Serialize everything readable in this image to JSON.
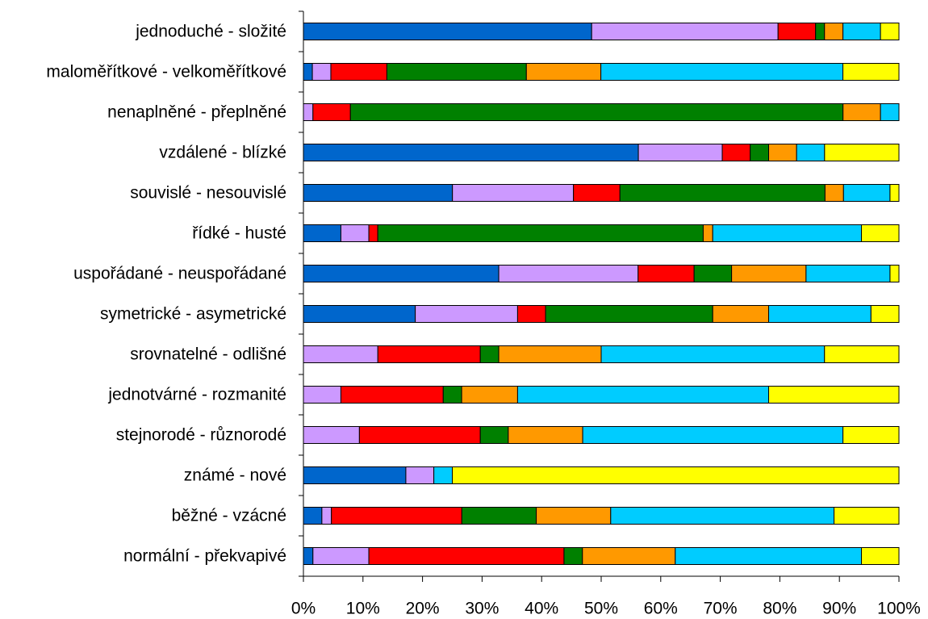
{
  "chart_data": {
    "type": "bar",
    "orientation": "horizontal",
    "stacked": true,
    "percent": true,
    "categories": [
      "jednoduché - složité",
      "maloměřítkové - velkoměřítkové",
      "nenaplněné - přeplněné",
      "vzdálené - blízké",
      "souvislé - nesouvislé",
      "řídké - husté",
      "uspořádané - neuspořádané",
      "symetrické - asymetrické",
      "srovnatelné - odlišné",
      "jednotvárné - rozmanité",
      "stejnorodé - různorodé",
      "známé - nové",
      "běžné - vzácné",
      "normální - překvapivé"
    ],
    "series": [
      {
        "color": "#0066CC",
        "values": [
          48.4,
          1.5,
          0,
          56.3,
          25.0,
          6.3,
          32.8,
          18.8,
          0,
          0,
          0,
          17.2,
          3.1,
          1.6
        ]
      },
      {
        "color": "#CC99FF",
        "values": [
          31.3,
          3.1,
          1.6,
          14.1,
          20.3,
          4.7,
          23.4,
          17.2,
          12.5,
          6.3,
          9.4,
          4.7,
          1.6,
          9.4
        ]
      },
      {
        "color": "#FF0000",
        "values": [
          6.3,
          9.4,
          6.3,
          4.7,
          7.8,
          1.5,
          9.4,
          4.7,
          17.2,
          17.2,
          20.3,
          0,
          21.9,
          32.8
        ]
      },
      {
        "color": "#008000",
        "values": [
          1.5,
          23.4,
          82.8,
          3.1,
          34.4,
          54.7,
          6.3,
          28.1,
          3.1,
          3.1,
          4.7,
          0,
          12.5,
          3.1
        ]
      },
      {
        "color": "#FF9900",
        "values": [
          3.1,
          12.5,
          6.3,
          4.7,
          3.1,
          1.6,
          12.5,
          9.4,
          17.2,
          9.4,
          12.5,
          0,
          12.5,
          15.6
        ]
      },
      {
        "color": "#00CCFF",
        "values": [
          6.3,
          40.6,
          3.1,
          4.7,
          7.8,
          25.0,
          14.1,
          17.2,
          37.5,
          42.2,
          43.7,
          3.1,
          37.5,
          31.3
        ]
      },
      {
        "color": "#FFFF00",
        "values": [
          3.1,
          9.4,
          0,
          12.5,
          1.5,
          6.3,
          1.5,
          4.7,
          12.5,
          21.9,
          9.4,
          75.0,
          10.9,
          6.3
        ]
      }
    ],
    "xlim": [
      0,
      100
    ],
    "xticks": [
      "0%",
      "10%",
      "20%",
      "30%",
      "40%",
      "50%",
      "60%",
      "70%",
      "80%",
      "90%",
      "100%"
    ],
    "title": "",
    "xlabel": "",
    "ylabel": "",
    "grid": false,
    "legend": "none"
  }
}
